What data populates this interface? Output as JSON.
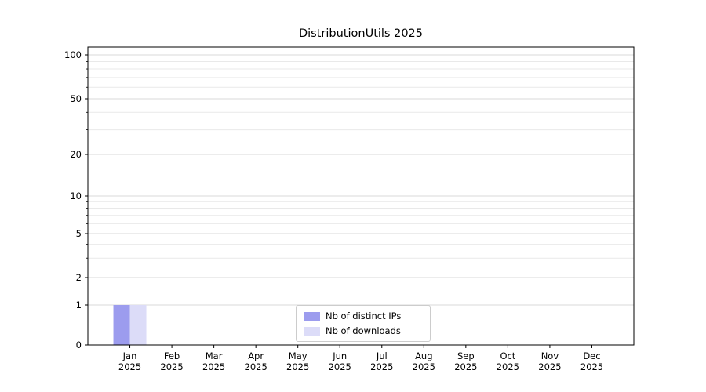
{
  "chart_data": {
    "type": "bar",
    "title": "DistributionUtils 2025",
    "categories": [
      "Jan 2025",
      "Feb 2025",
      "Mar 2025",
      "Apr 2025",
      "May 2025",
      "Jun 2025",
      "Jul 2025",
      "Aug 2025",
      "Sep 2025",
      "Oct 2025",
      "Nov 2025",
      "Dec 2025"
    ],
    "series": [
      {
        "name": "Nb of distinct IPs",
        "color": "#9c9cee",
        "values": [
          1,
          0,
          0,
          0,
          0,
          0,
          0,
          0,
          0,
          0,
          0,
          0
        ]
      },
      {
        "name": "Nb of downloads",
        "color": "#dcdcf8",
        "values": [
          1,
          0,
          0,
          0,
          0,
          0,
          0,
          0,
          0,
          0,
          0,
          0
        ]
      }
    ],
    "y_axis": {
      "scale": "symlog",
      "ticks": [
        0,
        1,
        2,
        5,
        10,
        20,
        50,
        100
      ],
      "minor_gridlines": [
        3,
        4,
        6,
        7,
        8,
        9,
        30,
        40,
        60,
        70,
        80,
        90
      ],
      "ylim": [
        0,
        130
      ]
    },
    "x_axis": {
      "tick_label_lines": 2
    },
    "legend": {
      "position": "lower center",
      "border_color": "#cccccc",
      "background": "#ffffff"
    },
    "grid": true,
    "colors": {
      "grid_minor": "#e9e9e9",
      "grid_major": "#dadada",
      "spine": "#000000"
    }
  }
}
